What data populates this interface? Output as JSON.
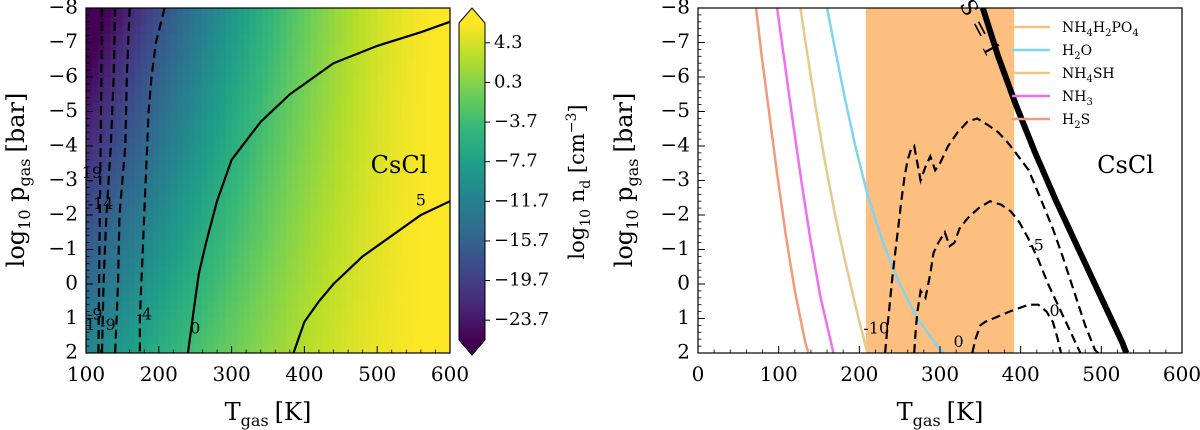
{
  "chart_data": [
    {
      "type": "heatmap",
      "species": "CsCl",
      "x": {
        "label_main": "T",
        "label_sub": "gas",
        "label_unit": "[K]",
        "lim": [
          100,
          600
        ],
        "ticks": [
          100,
          200,
          300,
          400,
          500,
          600
        ],
        "tick_labels": [
          "100",
          "200",
          "300",
          "400",
          "500",
          "600"
        ]
      },
      "y": {
        "label_pre": "log",
        "label_pre_sub": "10",
        "label_main": " p",
        "label_sub": "gas",
        "label_unit": "[bar]",
        "lim": [
          2,
          -8
        ],
        "ticks": [
          2,
          1,
          0,
          -1,
          -2,
          -3,
          -4,
          -5,
          -6,
          -7,
          -8
        ],
        "tick_labels": [
          "2",
          "1",
          "0",
          "−1",
          "−2",
          "−3",
          "−4",
          "−5",
          "−6",
          "−7",
          "−8"
        ]
      },
      "colorbar": {
        "label_pre": "log",
        "label_pre_sub": "10",
        "label_main": " n",
        "label_sub": "d",
        "label_unit": " [cm",
        "label_sup": "−3",
        "label_end": "]",
        "range": [
          -25.7,
          6.3
        ],
        "ticks": [
          4.3,
          0.3,
          -3.7,
          -7.7,
          -11.7,
          -15.7,
          -19.7,
          -23.7
        ],
        "tick_labels": [
          "4.3",
          "0.3",
          "−3.7",
          "−7.7",
          "−11.7",
          "−15.7",
          "−19.7",
          "−23.7"
        ],
        "colormap": [
          "#440154",
          "#482878",
          "#3e4989",
          "#31688e",
          "#26828e",
          "#1f9e89",
          "#35b779",
          "#6ece58",
          "#b5de2b",
          "#fde725"
        ]
      },
      "field_model": {
        "type": "log_nd_surface",
        "min": -24.5,
        "max": 6.5
      },
      "contours": [
        {
          "level": -19,
          "style": "dashed",
          "points": [
            [
              122,
              -8
            ],
            [
              121,
              -6
            ],
            [
              120,
              -4
            ],
            [
              119,
              -2
            ],
            [
              118,
              0
            ],
            [
              117,
              2
            ]
          ]
        },
        {
          "level": -14,
          "style": "dashed",
          "points": [
            [
              140,
              -8
            ],
            [
              138,
              -6
            ],
            [
              134,
              -4
            ],
            [
              128,
              -2
            ],
            [
              124,
              0
            ],
            [
              122,
              2
            ]
          ]
        },
        {
          "level": -9,
          "style": "dashed",
          "points": [
            [
              160,
              -8
            ],
            [
              156,
              -6
            ],
            [
              154,
              -4
            ],
            [
              146,
              -2
            ],
            [
              144,
              0
            ],
            [
              142,
              1
            ],
            [
              140,
              2
            ]
          ]
        },
        {
          "level": -4,
          "style": "dashed",
          "points": [
            [
              208,
              -8
            ],
            [
              196,
              -7
            ],
            [
              190,
              -6
            ],
            [
              186,
              -5
            ],
            [
              184,
              -4
            ],
            [
              182,
              -3
            ],
            [
              180,
              -2
            ],
            [
              178,
              -1
            ],
            [
              176,
              0
            ],
            [
              174,
              1
            ],
            [
              174,
              2
            ]
          ]
        },
        {
          "level": 0,
          "style": "solid",
          "points": [
            [
              600,
              -7.6
            ],
            [
              560,
              -7.3
            ],
            [
              500,
              -6.9
            ],
            [
              440,
              -6.4
            ],
            [
              380,
              -5.5
            ],
            [
              340,
              -4.7
            ],
            [
              300,
              -3.6
            ],
            [
              280,
              -2.4
            ],
            [
              265,
              -1.2
            ],
            [
              255,
              -0.3
            ],
            [
              249,
              0.6
            ],
            [
              240,
              2
            ]
          ]
        },
        {
          "level": 5,
          "style": "solid",
          "points": [
            [
              600,
              -2.4
            ],
            [
              560,
              -2.0
            ],
            [
              520,
              -1.4
            ],
            [
              480,
              -0.8
            ],
            [
              440,
              0
            ],
            [
              420,
              0.5
            ],
            [
              400,
              1.1
            ],
            [
              385,
              2
            ]
          ]
        }
      ],
      "contour_labels": [
        {
          "text": "5",
          "at": [
            560,
            -2.4
          ]
        },
        {
          "text": "0",
          "at": [
            250,
            1.3
          ]
        },
        {
          "text": "-4",
          "at": [
            180,
            0.9
          ]
        },
        {
          "text": "-9",
          "at": [
            130,
            1.2
          ]
        },
        {
          "text": "-9",
          "at": [
            112,
            0.9
          ]
        },
        {
          "text": "-14",
          "at": [
            120,
            -2.3
          ]
        },
        {
          "text": "19",
          "at": [
            108,
            -3.2
          ]
        },
        {
          "text": "1",
          "at": [
            106,
            1.2
          ]
        },
        {
          "text": "-",
          "at": [
            106,
            -3.0
          ]
        },
        {
          "text": "CsCl",
          "at": [
            530,
            -3.4
          ],
          "kind": "species"
        }
      ]
    },
    {
      "type": "line",
      "species": "CsCl",
      "x": {
        "label_main": "T",
        "label_sub": "gas",
        "label_unit": "[K]",
        "lim": [
          0,
          600
        ],
        "ticks": [
          0,
          100,
          200,
          300,
          400,
          500,
          600
        ],
        "tick_labels": [
          "0",
          "100",
          "200",
          "300",
          "400",
          "500",
          "600"
        ]
      },
      "y": {
        "label_pre": "log",
        "label_pre_sub": "10",
        "label_main": " p",
        "label_sub": "gas",
        "label_unit": "[bar]",
        "lim": [
          2,
          -8
        ],
        "ticks": [
          2,
          1,
          0,
          -1,
          -2,
          -3,
          -4,
          -5,
          -6,
          -7,
          -8
        ],
        "tick_labels": [
          "2",
          "1",
          "0",
          "−1",
          "−2",
          "−3",
          "−4",
          "−5",
          "−6",
          "−7",
          "−8"
        ]
      },
      "shaded_band": {
        "x": [
          208,
          392
        ],
        "color": "#fdbf7f"
      },
      "series": [
        {
          "name": "NH4H2PO4",
          "label_parts": [
            "NH",
            "4",
            "H",
            "2",
            "PO",
            "4"
          ],
          "color": "#fdbf7f",
          "in_legend": true,
          "points": []
        },
        {
          "name": "H2O",
          "label_parts": [
            "H",
            "2",
            "O",
            ""
          ],
          "color": "#7fd4f0",
          "in_legend": true,
          "points": [
            [
              160,
              -8
            ],
            [
              170,
              -6.8
            ],
            [
              182,
              -5.4
            ],
            [
              195,
              -4.0
            ],
            [
              210,
              -2.6
            ],
            [
              228,
              -1.3
            ],
            [
              248,
              -0.1
            ],
            [
              272,
              1.0
            ],
            [
              300,
              1.9
            ],
            [
              306,
              2
            ]
          ]
        },
        {
          "name": "NH4SH",
          "label_parts": [
            "NH",
            "4",
            "SH",
            ""
          ],
          "color": "#e8c98a",
          "in_legend": true,
          "points": [
            [
              127,
              -8
            ],
            [
              136,
              -6.6
            ],
            [
              146,
              -5.1
            ],
            [
              157,
              -3.6
            ],
            [
              170,
              -2.0
            ],
            [
              183,
              -0.6
            ],
            [
              197,
              0.8
            ],
            [
              210,
              2
            ]
          ]
        },
        {
          "name": "NH3",
          "label_parts": [
            "NH",
            "3",
            "",
            ""
          ],
          "color": "#ef6fef",
          "in_legend": true,
          "points": [
            [
              98,
              -8
            ],
            [
              107,
              -6.5
            ],
            [
              117,
              -4.8
            ],
            [
              128,
              -3.0
            ],
            [
              140,
              -1.2
            ],
            [
              152,
              0.4
            ],
            [
              166,
              1.8
            ],
            [
              168,
              2
            ]
          ]
        },
        {
          "name": "H2S",
          "label_parts": [
            "H",
            "2",
            "S",
            ""
          ],
          "color": "#f39a78",
          "in_legend": true,
          "points": [
            [
              72,
              -8
            ],
            [
              79,
              -6.6
            ],
            [
              88,
              -5.0
            ],
            [
              98,
              -3.2
            ],
            [
              109,
              -1.4
            ],
            [
              120,
              0.2
            ],
            [
              133,
              1.7
            ],
            [
              137,
              2
            ]
          ]
        },
        {
          "name": "S = 1",
          "color": "#000000",
          "in_legend": false,
          "width": 6,
          "points": [
            [
              353,
              -8
            ],
            [
              372,
              -6.6
            ],
            [
              394,
              -5.2
            ],
            [
              418,
              -3.8
            ],
            [
              444,
              -2.4
            ],
            [
              472,
              -1.0
            ],
            [
              500,
              0.4
            ],
            [
              526,
              1.7
            ],
            [
              531,
              2
            ]
          ]
        }
      ],
      "contours": [
        {
          "level": -10,
          "style": "dashed",
          "points": [
            [
              232,
              2
            ],
            [
              235,
              1.2
            ],
            [
              238,
              0.5
            ],
            [
              241,
              -0.2
            ],
            [
              245,
              -1.0
            ],
            [
              249,
              -1.8
            ],
            [
              252,
              -2.4
            ],
            [
              256,
              -3.1
            ],
            [
              260,
              -3.6
            ],
            [
              264,
              -3.9
            ],
            [
              268,
              -4.0
            ],
            [
              272,
              -3.5
            ],
            [
              276,
              -3.0
            ],
            [
              282,
              -3.4
            ],
            [
              288,
              -3.7
            ],
            [
              294,
              -3.3
            ],
            [
              300,
              -3.5
            ],
            [
              310,
              -4.0
            ],
            [
              322,
              -4.4
            ],
            [
              334,
              -4.7
            ],
            [
              346,
              -4.8
            ],
            [
              360,
              -4.6
            ],
            [
              372,
              -4.4
            ],
            [
              384,
              -4.1
            ],
            [
              394,
              -3.8
            ],
            [
              410,
              -3.3
            ],
            [
              426,
              -2.4
            ],
            [
              440,
              -1.6
            ],
            [
              452,
              -0.8
            ],
            [
              466,
              0.2
            ],
            [
              480,
              1.2
            ],
            [
              492,
              1.9
            ],
            [
              496,
              2
            ]
          ]
        },
        {
          "level": -5,
          "style": "dashed",
          "points": [
            [
              268,
              2
            ],
            [
              270,
              1.3
            ],
            [
              272,
              0.8
            ],
            [
              276,
              0.2
            ],
            [
              282,
              0.4
            ],
            [
              288,
              -0.3
            ],
            [
              292,
              -0.9
            ],
            [
              298,
              -1.2
            ],
            [
              306,
              -1.5
            ],
            [
              312,
              -1.1
            ],
            [
              318,
              -1.2
            ],
            [
              324,
              -1.6
            ],
            [
              334,
              -1.9
            ],
            [
              348,
              -2.2
            ],
            [
              362,
              -2.4
            ],
            [
              376,
              -2.3
            ],
            [
              388,
              -2.1
            ],
            [
              398,
              -1.8
            ],
            [
              410,
              -1.3
            ],
            [
              422,
              -0.7
            ],
            [
              434,
              0.0
            ],
            [
              446,
              0.6
            ],
            [
              458,
              1.2
            ],
            [
              470,
              1.8
            ],
            [
              474,
              2
            ]
          ]
        },
        {
          "level": 0,
          "style": "dashed",
          "points": [
            [
              340,
              2
            ],
            [
              344,
              1.6
            ],
            [
              350,
              1.2
            ],
            [
              356,
              1.1
            ],
            [
              366,
              1.0
            ],
            [
              376,
              0.9
            ],
            [
              386,
              0.8
            ],
            [
              398,
              0.7
            ],
            [
              410,
              0.6
            ],
            [
              422,
              0.6
            ],
            [
              432,
              0.8
            ],
            [
              440,
              1.1
            ],
            [
              446,
              1.6
            ],
            [
              450,
              2
            ]
          ]
        }
      ],
      "contour_labels": [
        {
          "text": "-10",
          "at": [
            221,
            1.3
          ]
        },
        {
          "text": "-5",
          "at": [
            419,
            -1.1
          ]
        },
        {
          "text": "0",
          "at": [
            442,
            0.8
          ]
        },
        {
          "text": "0",
          "at": [
            323,
            1.7
          ]
        },
        {
          "text": "S = 1",
          "at": [
            348,
            -7.4
          ],
          "kind": "rotated"
        },
        {
          "text": "CsCl",
          "at": [
            530,
            -3.4
          ],
          "kind": "species"
        }
      ]
    }
  ]
}
